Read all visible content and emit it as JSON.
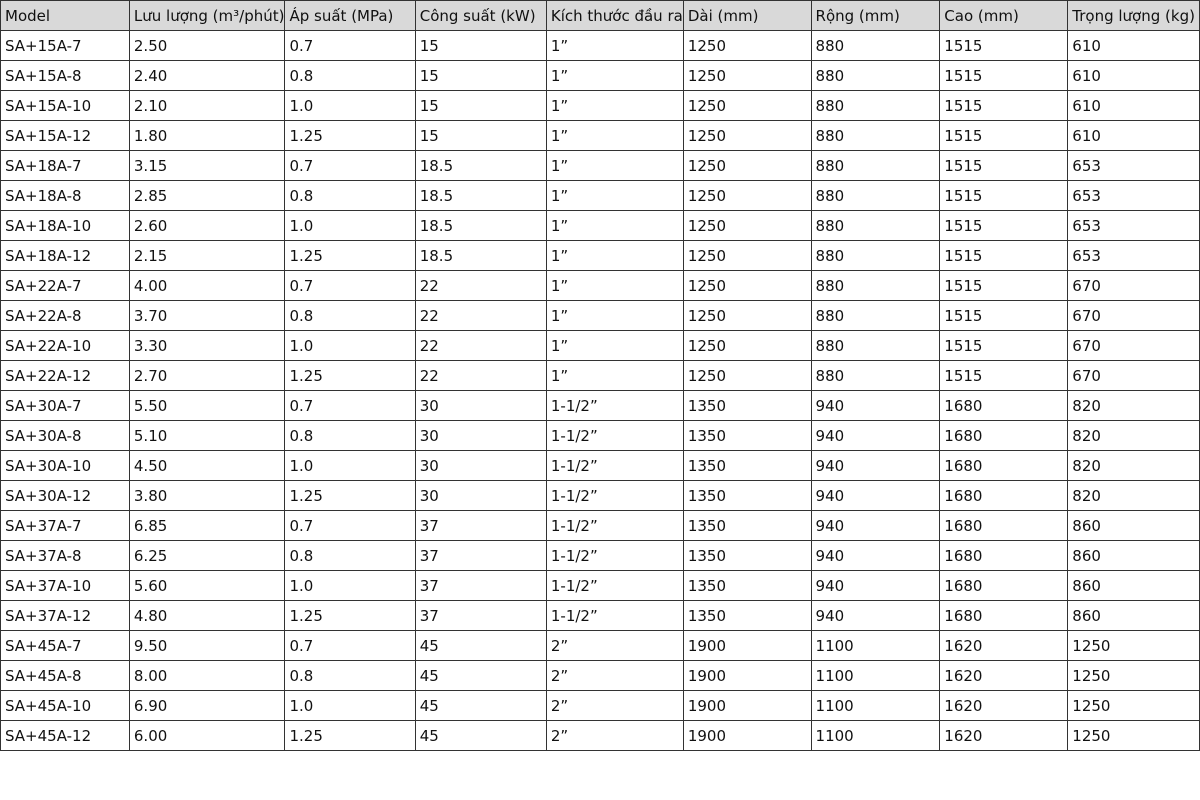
{
  "table": {
    "headers": [
      "Model",
      "Lưu lượng (m³/phút)",
      "Áp suất (MPa)",
      "Công suất (kW)",
      "Kích thước đầu ra",
      "Dài (mm)",
      "Rộng (mm)",
      "Cao (mm)",
      "Trọng lượng (kg)"
    ],
    "rows": [
      [
        "SA+15A-7",
        "2.50",
        "0.7",
        "15",
        "1”",
        "1250",
        "880",
        "1515",
        "610"
      ],
      [
        "SA+15A-8",
        "2.40",
        "0.8",
        "15",
        "1”",
        "1250",
        "880",
        "1515",
        "610"
      ],
      [
        "SA+15A-10",
        "2.10",
        "1.0",
        "15",
        "1”",
        "1250",
        "880",
        "1515",
        "610"
      ],
      [
        "SA+15A-12",
        "1.80",
        "1.25",
        "15",
        "1”",
        "1250",
        "880",
        "1515",
        "610"
      ],
      [
        "SA+18A-7",
        "3.15",
        "0.7",
        "18.5",
        "1”",
        "1250",
        "880",
        "1515",
        "653"
      ],
      [
        "SA+18A-8",
        "2.85",
        "0.8",
        "18.5",
        "1”",
        "1250",
        "880",
        "1515",
        "653"
      ],
      [
        "SA+18A-10",
        "2.60",
        "1.0",
        "18.5",
        "1”",
        "1250",
        "880",
        "1515",
        "653"
      ],
      [
        "SA+18A-12",
        "2.15",
        "1.25",
        "18.5",
        "1”",
        "1250",
        "880",
        "1515",
        "653"
      ],
      [
        "SA+22A-7",
        "4.00",
        "0.7",
        "22",
        "1”",
        "1250",
        "880",
        "1515",
        "670"
      ],
      [
        "SA+22A-8",
        "3.70",
        "0.8",
        "22",
        "1”",
        "1250",
        "880",
        "1515",
        "670"
      ],
      [
        "SA+22A-10",
        "3.30",
        "1.0",
        "22",
        "1”",
        "1250",
        "880",
        "1515",
        "670"
      ],
      [
        "SA+22A-12",
        "2.70",
        "1.25",
        "22",
        "1”",
        "1250",
        "880",
        "1515",
        "670"
      ],
      [
        "SA+30A-7",
        "5.50",
        "0.7",
        "30",
        "1-1/2”",
        "1350",
        "940",
        "1680",
        "820"
      ],
      [
        "SA+30A-8",
        "5.10",
        "0.8",
        "30",
        "1-1/2”",
        "1350",
        "940",
        "1680",
        "820"
      ],
      [
        "SA+30A-10",
        "4.50",
        "1.0",
        "30",
        "1-1/2”",
        "1350",
        "940",
        "1680",
        "820"
      ],
      [
        "SA+30A-12",
        "3.80",
        "1.25",
        "30",
        "1-1/2”",
        "1350",
        "940",
        "1680",
        "820"
      ],
      [
        "SA+37A-7",
        "6.85",
        "0.7",
        "37",
        "1-1/2”",
        "1350",
        "940",
        "1680",
        "860"
      ],
      [
        "SA+37A-8",
        "6.25",
        "0.8",
        "37",
        "1-1/2”",
        "1350",
        "940",
        "1680",
        "860"
      ],
      [
        "SA+37A-10",
        "5.60",
        "1.0",
        "37",
        "1-1/2”",
        "1350",
        "940",
        "1680",
        "860"
      ],
      [
        "SA+37A-12",
        "4.80",
        "1.25",
        "37",
        "1-1/2”",
        "1350",
        "940",
        "1680",
        "860"
      ],
      [
        "SA+45A-7",
        "9.50",
        "0.7",
        "45",
        "2”",
        "1900",
        "1100",
        "1620",
        "1250"
      ],
      [
        "SA+45A-8",
        "8.00",
        "0.8",
        "45",
        "2”",
        "1900",
        "1100",
        "1620",
        "1250"
      ],
      [
        "SA+45A-10",
        "6.90",
        "1.0",
        "45",
        "2”",
        "1900",
        "1100",
        "1620",
        "1250"
      ],
      [
        "SA+45A-12",
        "6.00",
        "1.25",
        "45",
        "2”",
        "1900",
        "1100",
        "1620",
        "1250"
      ]
    ]
  },
  "colors": {
    "header_bg": "#d9d9d9",
    "border": "#333333"
  }
}
